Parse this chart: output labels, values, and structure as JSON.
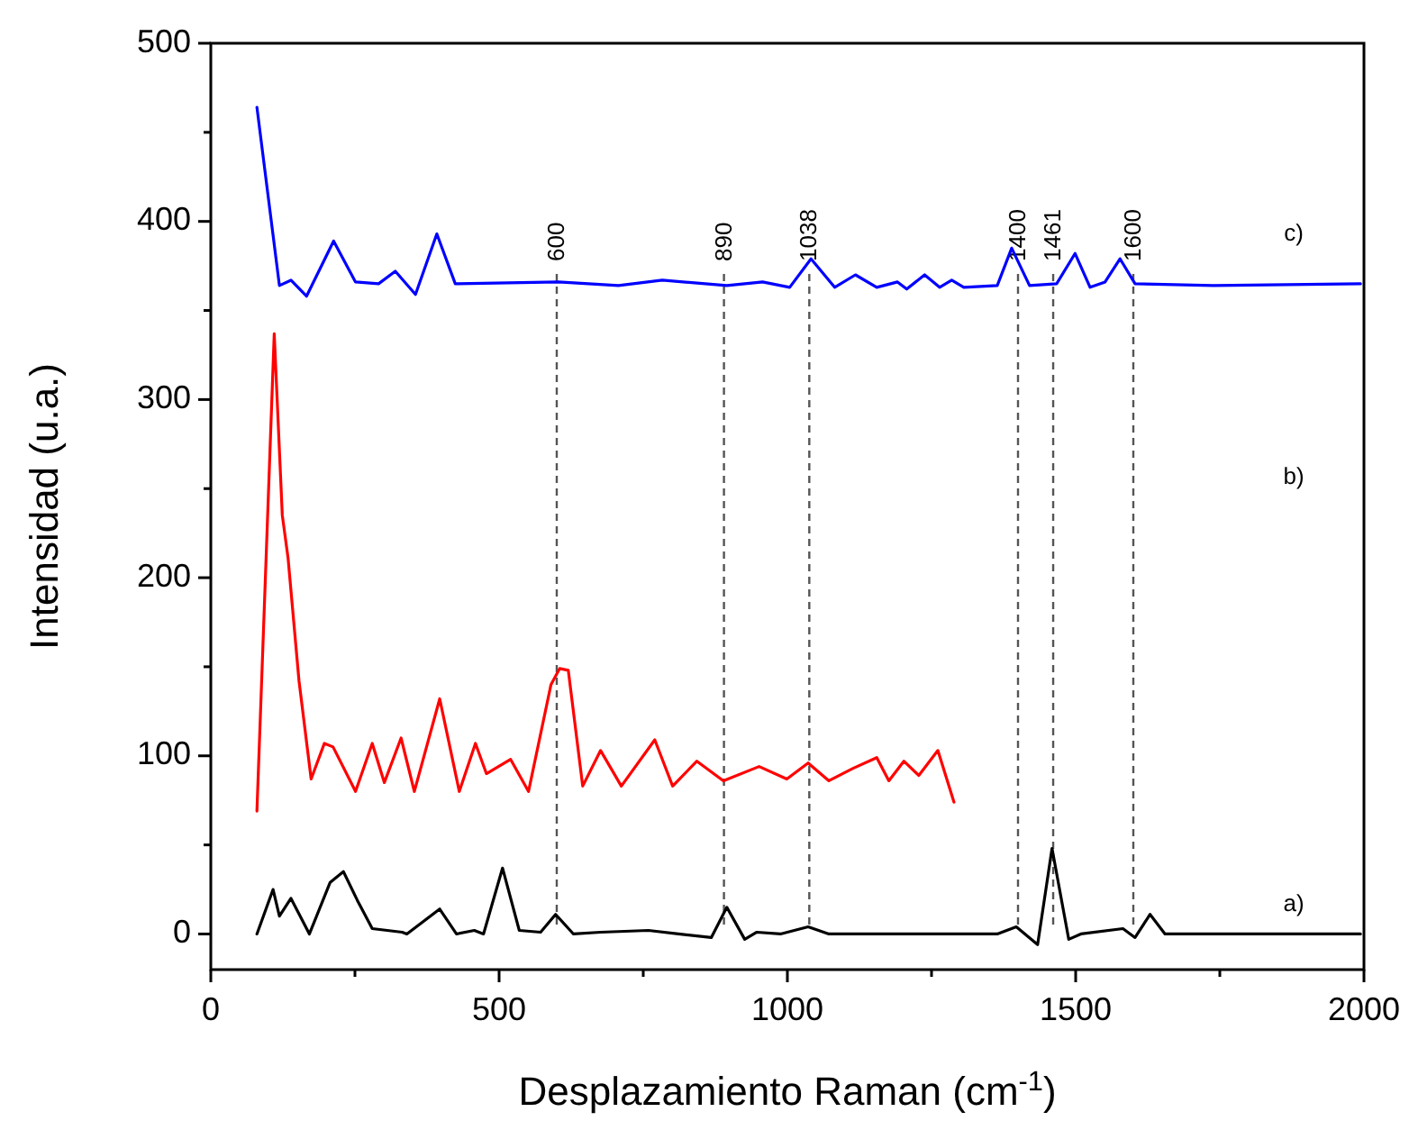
{
  "chart_data": {
    "type": "line",
    "xlabel": "Desplazamiento Raman (cm$^{-1}$)",
    "ylabel": "Intensidad (u.a.)",
    "xlim": [
      0,
      2000
    ],
    "ylim": [
      -20,
      500
    ],
    "xticks": [
      0,
      {
        "value": 250,
        "label": null
      },
      500,
      {
        "value": 750,
        "label": null
      },
      1000,
      {
        "value": 1250,
        "label": null
      },
      1500,
      {
        "value": 1750,
        "label": null
      },
      2000
    ],
    "yticks": [
      0,
      {
        "value": 50,
        "label": null
      },
      100,
      {
        "value": 150,
        "label": null
      },
      200,
      {
        "value": 250,
        "label": null
      },
      300,
      {
        "value": 350,
        "label": null
      },
      400,
      {
        "value": 450,
        "label": null
      },
      500
    ],
    "grid": false,
    "line_style": "solid",
    "series": [
      {
        "color": "#000000",
        "x": [
          80,
          108,
          119,
          139,
          171,
          207,
          230,
          254,
          280,
          332,
          340,
          397,
          426,
          457,
          473,
          506,
          535,
          572,
          598,
          629,
          676,
          759,
          811,
          868,
          895,
          926,
          947,
          988,
          1036,
          1072,
          1114,
          1364,
          1397,
          1434,
          1459,
          1488,
          1509,
          1582,
          1603,
          1629,
          1655,
          1801,
          1994
        ],
        "values": [
          0,
          25,
          10,
          20,
          0,
          29,
          35,
          19,
          3,
          1,
          0,
          14,
          0,
          2,
          0,
          37,
          2,
          1,
          11,
          0,
          1,
          2,
          0,
          -2,
          15,
          -3,
          1,
          0,
          4,
          0,
          0,
          0,
          4,
          -6,
          48,
          -3,
          0,
          3,
          -2,
          11,
          0,
          0,
          0
        ]
      },
      {
        "color": "#ff0000",
        "x": [
          80,
          110,
          124,
          134,
          153,
          174,
          197,
          212,
          251,
          280,
          301,
          330,
          353,
          397,
          431,
          459,
          478,
          520,
          551,
          590,
          605,
          620,
          645,
          676,
          712,
          770,
          801,
          843,
          889,
          951,
          999,
          1036,
          1072,
          1114,
          1155,
          1176,
          1202,
          1228,
          1261,
          1289
        ],
        "values": [
          69,
          337,
          235,
          211,
          142,
          87,
          107,
          105,
          80,
          107,
          85,
          110,
          80,
          132,
          80,
          107,
          90,
          98,
          80,
          140,
          149,
          148,
          83,
          103,
          83,
          109,
          83,
          97,
          86,
          94,
          87,
          96,
          86,
          93,
          99,
          86,
          97,
          89,
          103,
          74
        ]
      },
      {
        "color": "#0000ff",
        "x": [
          80,
          119,
          139,
          166,
          213,
          251,
          291,
          320,
          355,
          392,
          424,
          603,
          707,
          783,
          895,
          957,
          1004,
          1041,
          1082,
          1118,
          1155,
          1191,
          1207,
          1238,
          1264,
          1285,
          1306,
          1364,
          1389,
          1420,
          1467,
          1499,
          1525,
          1551,
          1577,
          1603,
          1739,
          1994
        ],
        "values": [
          464,
          364,
          367,
          358,
          389,
          366,
          365,
          372,
          359,
          393,
          365,
          366,
          364,
          367,
          364,
          366,
          363,
          379,
          363,
          370,
          363,
          366,
          362,
          370,
          363,
          367,
          363,
          364,
          385,
          364,
          365,
          382,
          363,
          366,
          379,
          365,
          364,
          365
        ]
      }
    ],
    "ref_lines": [
      {
        "axis": "x",
        "value": 600,
        "label": "600",
        "color": "#555555",
        "line_style": "dashed"
      },
      {
        "axis": "x",
        "value": 890,
        "label": "890",
        "color": "#555555",
        "line_style": "dashed"
      },
      {
        "axis": "x",
        "value": 1038,
        "label": "1038",
        "color": "#555555",
        "line_style": "dashed"
      },
      {
        "axis": "x",
        "value": 1400,
        "label": "1400",
        "color": "#555555",
        "line_style": "dashed"
      },
      {
        "axis": "x",
        "value": 1461,
        "label": "1461",
        "color": "#555555",
        "line_style": "dashed"
      },
      {
        "axis": "x",
        "value": 1600,
        "label": "1600",
        "color": "#555555",
        "line_style": "dashed"
      }
    ],
    "annotations": [
      "a)",
      "b)",
      "c)"
    ]
  }
}
